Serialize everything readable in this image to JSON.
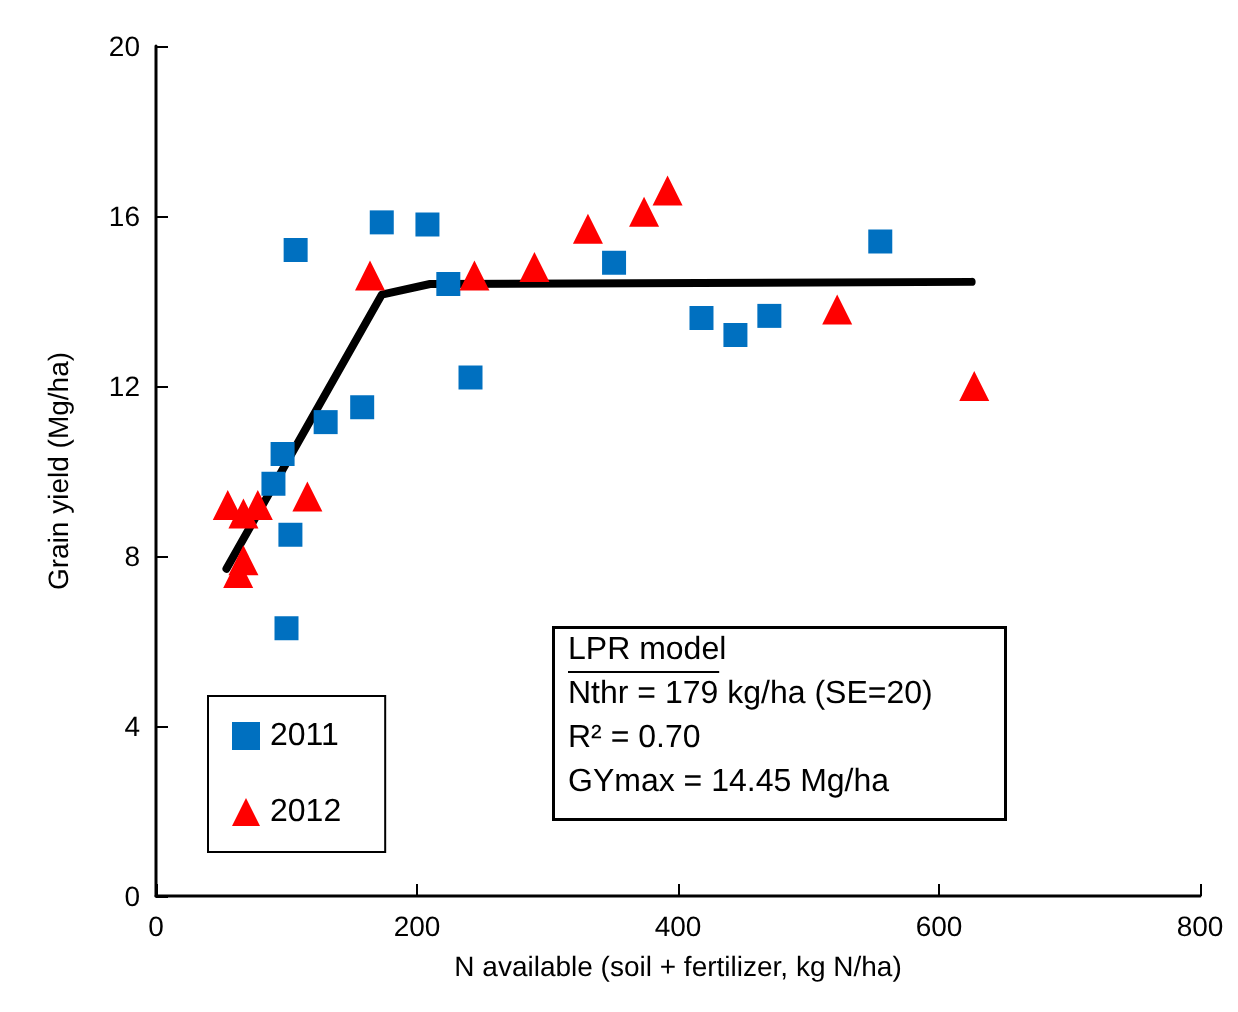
{
  "chart_data": {
    "type": "scatter",
    "xlabel": "N available (soil + fertilizer, kg N/ha)",
    "ylabel": "Grain yield (Mg/ha)",
    "xlim": [
      0,
      800
    ],
    "xticks": [
      0,
      200,
      400,
      600,
      800
    ],
    "ylim": [
      0,
      20
    ],
    "yticks": [
      0,
      4,
      8,
      12,
      16,
      20
    ],
    "grid": false,
    "legend": "bottom left",
    "annotations": [
      "LPR model",
      "Nthr = 179 kg/ha (SE=20)",
      "R² = 0.70",
      "GYmax = 14.45 Mg/ha"
    ],
    "series": [
      {
        "name": "2011",
        "color": "#0070c0",
        "marker": "square",
        "x": [
          107,
          173,
          208,
          224,
          241,
          158,
          130,
          97,
          90,
          103,
          100,
          351,
          418,
          444,
          470,
          555
        ],
        "values": [
          15.2,
          15.85,
          15.8,
          14.4,
          12.2,
          11.5,
          11.15,
          10.4,
          9.7,
          8.5,
          6.3,
          14.9,
          13.6,
          13.2,
          13.65,
          15.4
        ]
      },
      {
        "name": "2012",
        "color": "#ff0000",
        "marker": "triangle",
        "x": [
          55,
          67,
          78,
          116,
          67,
          63,
          164,
          244,
          290,
          331,
          374,
          392,
          522,
          627
        ],
        "values": [
          9.2,
          9.0,
          9.2,
          9.4,
          7.9,
          7.6,
          14.6,
          14.6,
          14.8,
          15.7,
          16.1,
          16.6,
          13.8,
          12.0
        ]
      },
      {
        "type": "line",
        "color": "#000000",
        "marker": "none",
        "x": [
          54,
          173,
          210,
          625
        ],
        "values": [
          7.7,
          14.15,
          14.4,
          14.45
        ]
      }
    ]
  }
}
